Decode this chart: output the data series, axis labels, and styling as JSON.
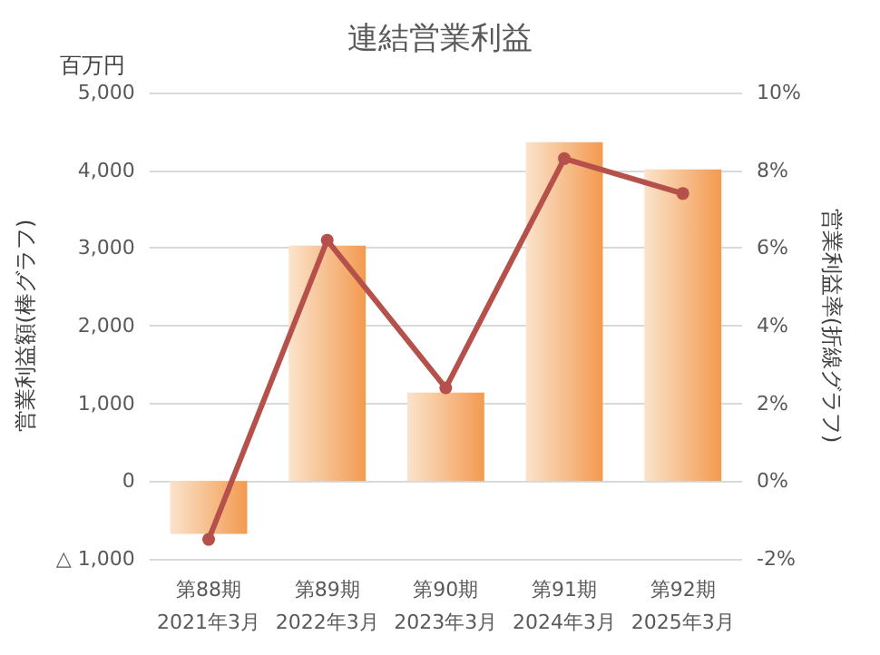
{
  "chart_data": {
    "type": "bar",
    "title": "連結営業利益",
    "ylabel": "営業利益額(棒グラフ)",
    "y2label": "営業利益率(折線グラフ)",
    "annotations": [
      "百万円"
    ],
    "categories": [
      "第88期\n2021年3月",
      "第89期\n2022年3月",
      "第90期\n2023年3月",
      "第91期\n2024年3月",
      "第92期\n2025年3月"
    ],
    "series": [
      {
        "color": "#f39a4f",
        "values": [
          -680,
          3030,
          1140,
          4360,
          4010
        ]
      },
      {
        "type": "line",
        "axis": "y2",
        "color": "#b5504a",
        "values": [
          -1.5,
          6.2,
          2.4,
          8.3,
          7.4
        ]
      }
    ],
    "ylim": [
      -1000,
      5000
    ],
    "yticks": [
      {
        "value": -1000,
        "label": "△ 1,000"
      },
      {
        "value": 0,
        "label": "0"
      },
      {
        "value": 1000,
        "label": "1,000"
      },
      {
        "value": 2000,
        "label": "2,000"
      },
      {
        "value": 3000,
        "label": "3,000"
      },
      {
        "value": 4000,
        "label": "4,000"
      },
      {
        "value": 5000,
        "label": "5,000"
      }
    ],
    "y2lim": [
      -2,
      10
    ],
    "y2ticks": [
      {
        "value": -2,
        "label": "-2%"
      },
      {
        "value": 0,
        "label": "0%"
      },
      {
        "value": 2,
        "label": "2%"
      },
      {
        "value": 4,
        "label": "4%"
      },
      {
        "value": 6,
        "label": "6%"
      },
      {
        "value": 8,
        "label": "8%"
      },
      {
        "value": 10,
        "label": "10%"
      }
    ],
    "grid": "y",
    "marker": "circle",
    "line_style": "solid"
  }
}
